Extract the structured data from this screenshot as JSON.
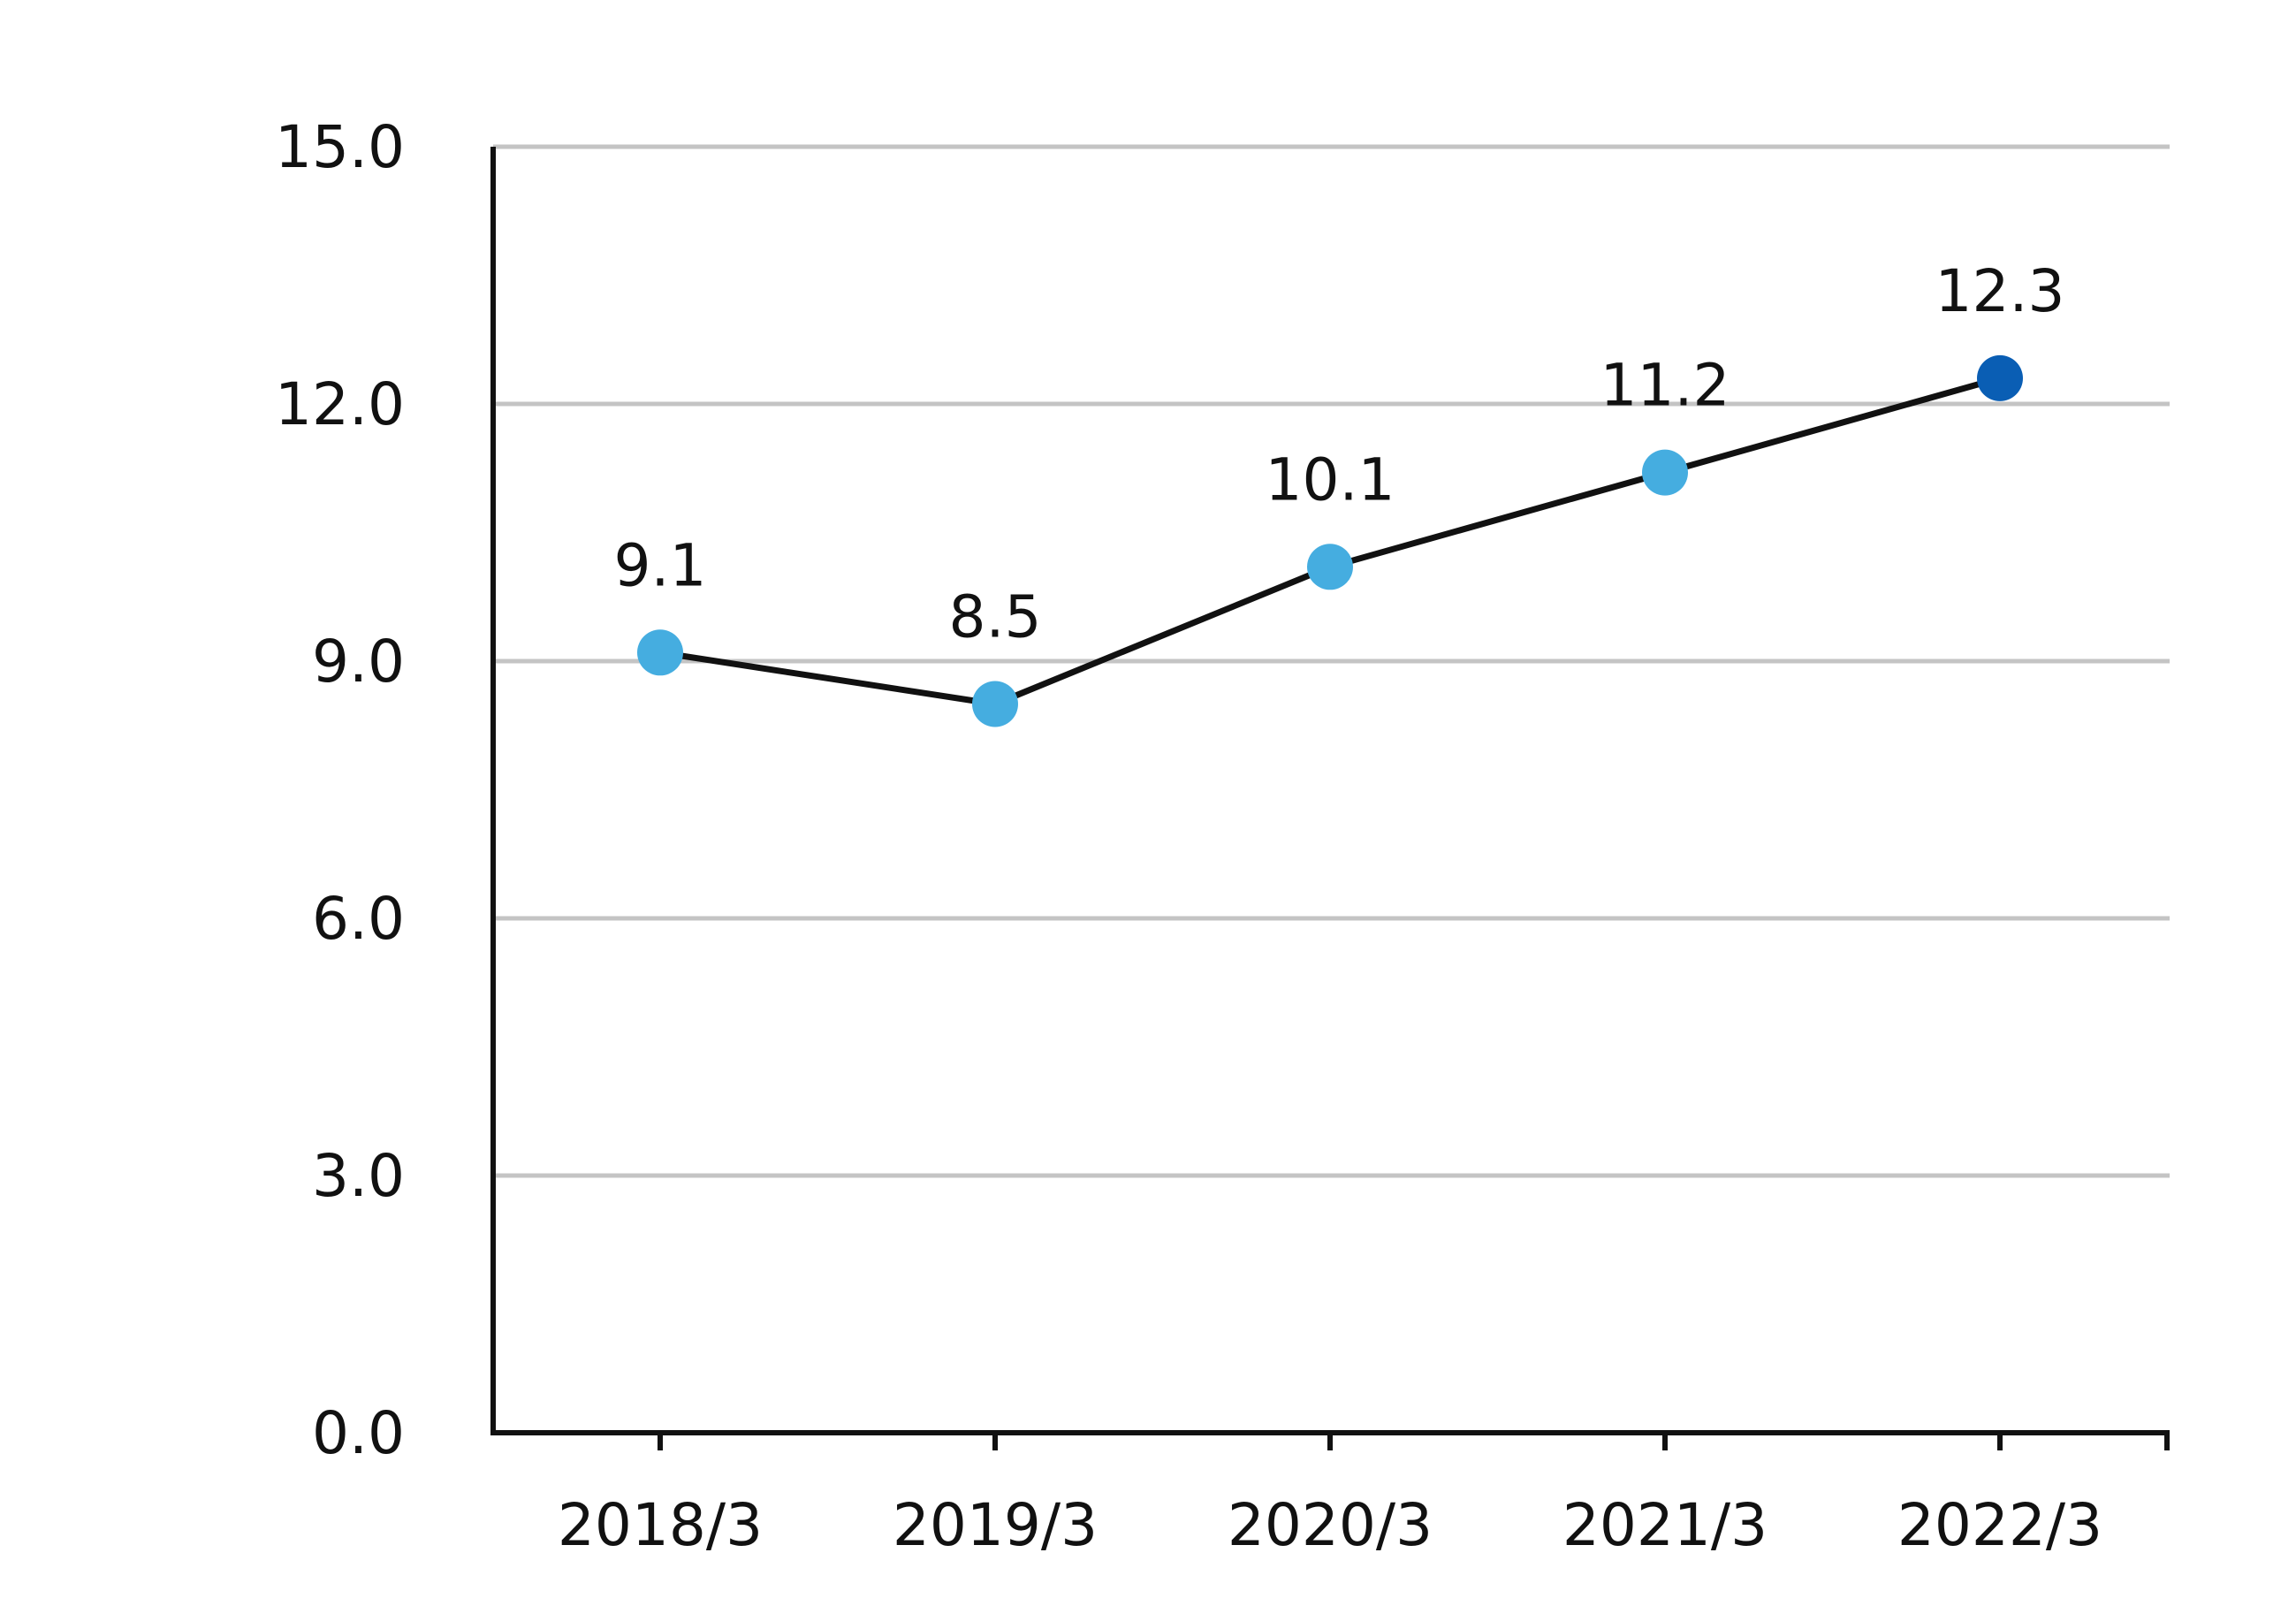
{
  "chart_data": {
    "type": "line",
    "title": "",
    "xlabel": "",
    "ylabel": "",
    "categories": [
      "2018/3",
      "2019/3",
      "2020/3",
      "2021/3",
      "2022/3"
    ],
    "series": [
      {
        "values": [
          9.1,
          8.5,
          10.1,
          11.2,
          12.3
        ],
        "value_labels": [
          "9.1",
          "8.5",
          "10.1",
          "11.2",
          "12.3"
        ]
      }
    ],
    "ylim": [
      0,
      15
    ],
    "yticks": [
      0,
      3,
      6,
      9,
      12,
      15
    ],
    "ytick_labels": [
      "0.0",
      "3.0",
      "6.0",
      "9.0",
      "12.0",
      "15.0"
    ],
    "grid": true,
    "legend": "none",
    "colors": {
      "line": "#111111",
      "marker": "#45ADE0",
      "marker_highlight": "#0A5EB4",
      "grid": "#C4C4C4",
      "axis": "#111111"
    }
  }
}
